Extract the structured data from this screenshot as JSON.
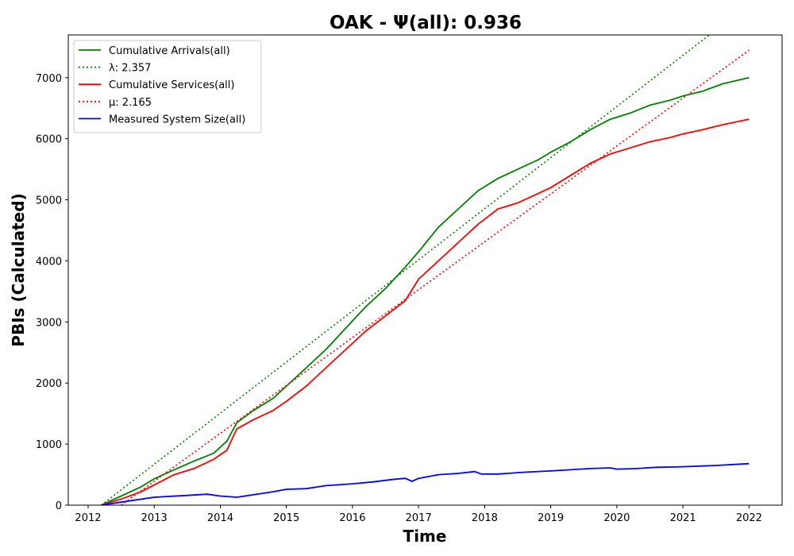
{
  "chart_data": {
    "type": "line",
    "title": "OAK -  Ψ(all): 0.936",
    "xlabel": "Time",
    "ylabel": "PBIs (Calculated)",
    "xlim": [
      2011.7,
      2022.5
    ],
    "ylim": [
      0,
      7700
    ],
    "x_ticks": [
      2012,
      2013,
      2014,
      2015,
      2016,
      2017,
      2018,
      2019,
      2020,
      2021,
      2022
    ],
    "x_tick_labels": [
      "2012",
      "2013",
      "2014",
      "2015",
      "2016",
      "2017",
      "2018",
      "2019",
      "2020",
      "2021",
      "2022"
    ],
    "y_ticks": [
      0,
      1000,
      2000,
      3000,
      4000,
      5000,
      6000,
      7000
    ],
    "y_tick_labels": [
      "0",
      "1000",
      "2000",
      "3000",
      "4000",
      "5000",
      "6000",
      "7000"
    ],
    "grid": false,
    "legend_position": "top-left",
    "series": [
      {
        "name": "Cumulative Arrivals(all)",
        "color": "#008000",
        "style": "solid",
        "x": [
          2012.2,
          2012.5,
          2012.8,
          2013.0,
          2013.3,
          2013.6,
          2013.9,
          2014.1,
          2014.25,
          2014.5,
          2014.8,
          2015.0,
          2015.3,
          2015.6,
          2015.9,
          2016.2,
          2016.5,
          2016.8,
          2017.0,
          2017.3,
          2017.6,
          2017.9,
          2018.2,
          2018.5,
          2018.8,
          2019.0,
          2019.3,
          2019.6,
          2019.9,
          2020.2,
          2020.5,
          2020.8,
          2021.0,
          2021.3,
          2021.6,
          2022.0
        ],
        "y": [
          0,
          150,
          300,
          430,
          580,
          720,
          850,
          1050,
          1350,
          1550,
          1750,
          1950,
          2250,
          2550,
          2900,
          3250,
          3550,
          3900,
          4150,
          4550,
          4850,
          5150,
          5350,
          5500,
          5650,
          5780,
          5950,
          6150,
          6320,
          6420,
          6550,
          6630,
          6700,
          6780,
          6900,
          7000
        ]
      },
      {
        "name": "λ: 2.357",
        "color": "#008000",
        "style": "dotted",
        "x": [
          2012.2,
          2021.4
        ],
        "y": [
          0,
          7700
        ]
      },
      {
        "name": "Cumulative Services(all)",
        "color": "#ff0000",
        "style": "solid",
        "x": [
          2012.2,
          2012.5,
          2012.8,
          2013.0,
          2013.3,
          2013.6,
          2013.9,
          2014.1,
          2014.25,
          2014.5,
          2014.8,
          2015.0,
          2015.3,
          2015.6,
          2015.9,
          2016.2,
          2016.5,
          2016.8,
          2017.0,
          2017.3,
          2017.6,
          2017.9,
          2018.2,
          2018.5,
          2018.8,
          2019.0,
          2019.3,
          2019.6,
          2019.9,
          2020.2,
          2020.5,
          2020.8,
          2021.0,
          2021.3,
          2021.6,
          2022.0
        ],
        "y": [
          0,
          100,
          220,
          330,
          500,
          600,
          750,
          900,
          1250,
          1400,
          1550,
          1700,
          1950,
          2250,
          2550,
          2850,
          3100,
          3350,
          3700,
          4000,
          4300,
          4600,
          4850,
          4950,
          5100,
          5200,
          5400,
          5600,
          5750,
          5850,
          5950,
          6020,
          6080,
          6150,
          6230,
          6320
        ]
      },
      {
        "name": "μ: 2.165",
        "color": "#ff0000",
        "style": "dotted",
        "x": [
          2012.5,
          2022.0
        ],
        "y": [
          0,
          7450
        ]
      },
      {
        "name": "Measured System Size(all)",
        "color": "#0000ff",
        "style": "solid",
        "x": [
          2012.2,
          2012.5,
          2013.0,
          2013.5,
          2013.8,
          2014.0,
          2014.25,
          2014.5,
          2014.8,
          2015.0,
          2015.3,
          2015.6,
          2016.0,
          2016.3,
          2016.6,
          2016.8,
          2016.9,
          2017.0,
          2017.3,
          2017.6,
          2017.85,
          2017.95,
          2018.2,
          2018.6,
          2019.0,
          2019.3,
          2019.6,
          2019.9,
          2020.0,
          2020.3,
          2020.6,
          2021.0,
          2021.5,
          2022.0
        ],
        "y": [
          0,
          50,
          130,
          160,
          180,
          150,
          130,
          170,
          220,
          260,
          270,
          320,
          350,
          380,
          420,
          440,
          390,
          440,
          500,
          520,
          550,
          510,
          510,
          540,
          560,
          580,
          600,
          610,
          590,
          600,
          620,
          630,
          650,
          680
        ]
      }
    ]
  }
}
